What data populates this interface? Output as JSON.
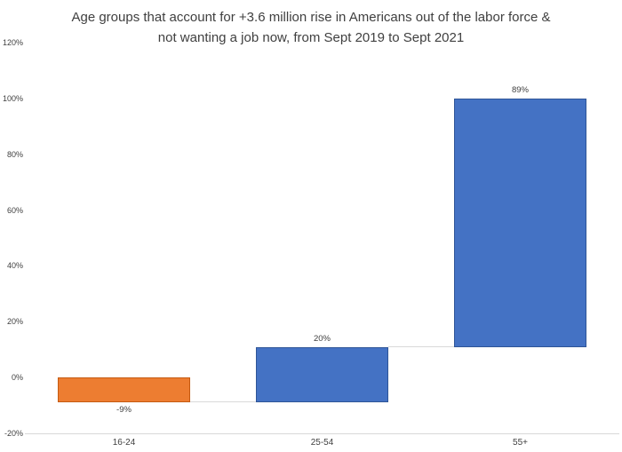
{
  "page": {
    "background": "#ffffff"
  },
  "chart_data": {
    "type": "bar",
    "subtype": "waterfall",
    "title_line1": "Age groups that account for +3.6 million rise in Americans out of the labor force &",
    "title_line2": "not wanting a job now, from Sept 2019 to Sept 2021",
    "categories": [
      "16-24",
      "25-54",
      "55+"
    ],
    "values": [
      -9,
      20,
      89
    ],
    "cumulative_start": [
      0,
      -9,
      11
    ],
    "cumulative_end": [
      -9,
      11,
      100
    ],
    "data_labels": [
      "-9%",
      "20%",
      "89%"
    ],
    "bar_fill_colors": [
      "#ED7D31",
      "#4472C4",
      "#4472C4"
    ],
    "bar_border_colors": [
      "#C55A11",
      "#2F5597",
      "#2F5597"
    ],
    "connector_color": "#D9D9D9",
    "axis_line_color": "#D9D9D9",
    "label_color": "#404040",
    "title_color": "#404040",
    "ylim": [
      -20,
      120
    ],
    "ytick_values": [
      120,
      100,
      80,
      60,
      40,
      20,
      0,
      -20
    ],
    "ytick_labels": [
      "120%",
      "100%",
      "80%",
      "60%",
      "40%",
      "20%",
      "0%",
      "-20%"
    ],
    "grid": false,
    "legend": "none",
    "xlabel": "",
    "ylabel": ""
  }
}
